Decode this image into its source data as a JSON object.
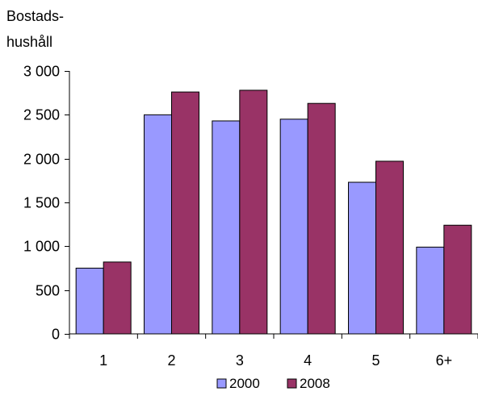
{
  "chart_data": {
    "type": "bar",
    "title": "",
    "ylabel_lines": [
      "Bostads-",
      "hushåll"
    ],
    "xlabel": "",
    "categories": [
      "1",
      "2",
      "3",
      "4",
      "5",
      "6+"
    ],
    "series": [
      {
        "name": "2000",
        "color": "#9999ff",
        "values": [
          750,
          2500,
          2430,
          2450,
          1730,
          990
        ]
      },
      {
        "name": "2008",
        "color": "#993366",
        "values": [
          820,
          2760,
          2780,
          2630,
          1970,
          1240
        ]
      }
    ],
    "ylim": [
      0,
      3000
    ],
    "yticks": [
      0,
      500,
      1000,
      1500,
      2000,
      2500,
      3000
    ],
    "ytick_labels": [
      "0",
      "500",
      "1 000",
      "1 500",
      "2 000",
      "2 500",
      "3 000"
    ],
    "grid": false,
    "legend_position": "bottom"
  }
}
